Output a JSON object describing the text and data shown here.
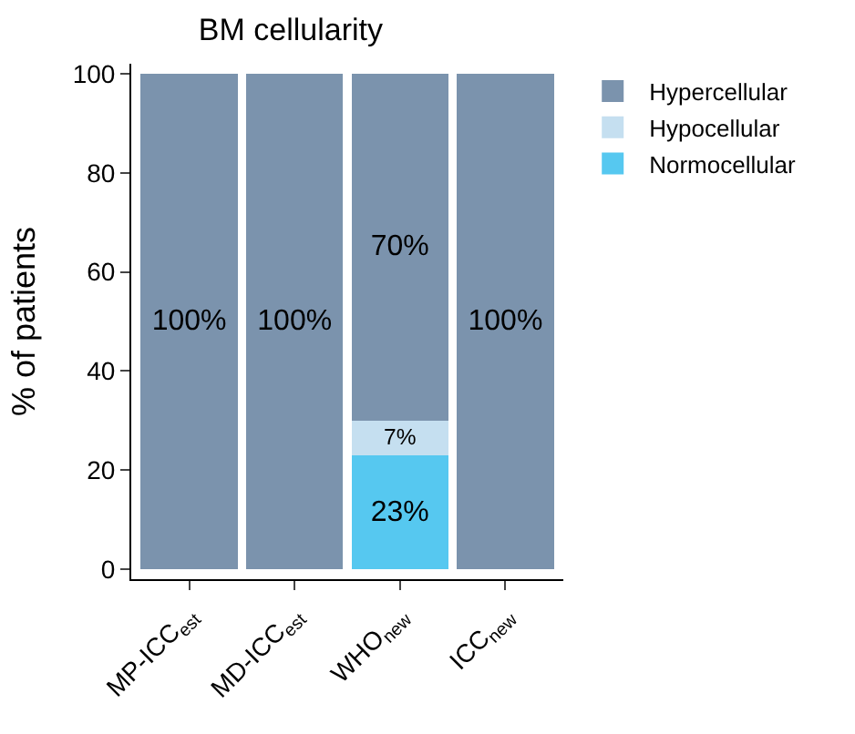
{
  "chart_data": {
    "type": "bar",
    "title": "BM cellularity",
    "ylabel": "% of patients",
    "categories": [
      "MP-ICC$_{est}$",
      "MD-ICC$_{est}$",
      "WHO$_{new}$",
      "ICC$_{new}$"
    ],
    "stacked": true,
    "series": [
      {
        "name": "Normocellular",
        "color": "#56c8f0",
        "values": [
          0,
          0,
          23,
          0
        ],
        "value_labels": [
          null,
          null,
          "23%",
          null
        ]
      },
      {
        "name": "Hypocellular",
        "color": "#c5dff0",
        "values": [
          0,
          0,
          7,
          0
        ],
        "value_labels": [
          null,
          null,
          "7%",
          null
        ]
      },
      {
        "name": "Hypercellular",
        "color": "#7b93ad",
        "values": [
          100,
          100,
          70,
          100
        ],
        "value_labels": [
          "100%",
          "100%",
          "70%",
          "100%"
        ]
      }
    ],
    "ylim": [
      -2,
      102
    ],
    "yticks": [
      0,
      20,
      40,
      60,
      80,
      100
    ],
    "legend": "top right"
  }
}
